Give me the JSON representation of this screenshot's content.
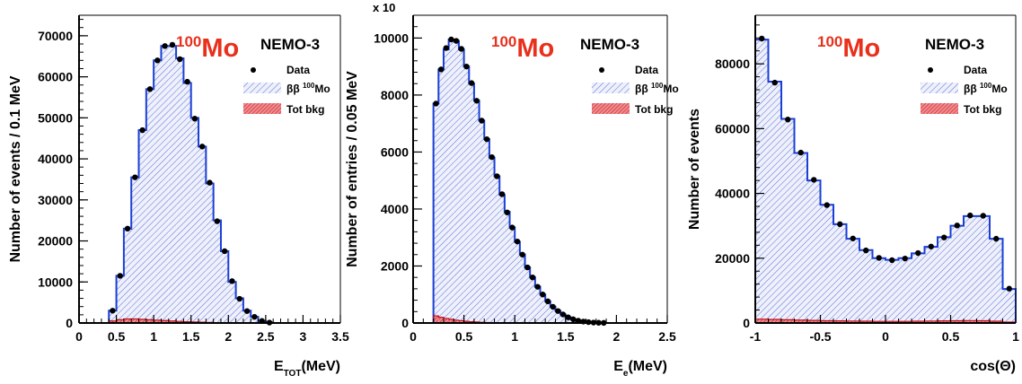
{
  "colors": {
    "signal_line": "#1a3fd6",
    "signal_hatch": "#4a5fd0",
    "bkg_fill": "#e8474c",
    "bkg_hatch": "#c1121a",
    "mo_label": "#e8301c",
    "data_marker": "#000000"
  },
  "chart_data": [
    {
      "type": "histogram",
      "panel": "left",
      "title": "",
      "isotope_label_mass": "100",
      "isotope_label_element": "Mo",
      "experiment_label": "NEMO-3",
      "ylabel": "Number of events / 0.1 MeV",
      "xlabel_main": "E",
      "xlabel_sub": "TOT",
      "xlabel_unit": "(MeV)",
      "y_multiplier": "",
      "xlim": [
        0,
        3.5
      ],
      "ylim": [
        0,
        75000
      ],
      "xticks": [
        0,
        0.5,
        1,
        1.5,
        2,
        2.5,
        3,
        3.5
      ],
      "xtick_labels": [
        "0",
        "0.5",
        "1",
        "1.5",
        "2",
        "2.5",
        "3",
        "3.5"
      ],
      "yticks": [
        0,
        10000,
        20000,
        30000,
        40000,
        50000,
        60000,
        70000
      ],
      "ytick_labels": [
        "0",
        "10000",
        "20000",
        "30000",
        "40000",
        "50000",
        "60000",
        "70000"
      ],
      "bin_edges": [
        0.4,
        0.5,
        0.6,
        0.7,
        0.8,
        0.9,
        1.0,
        1.1,
        1.2,
        1.3,
        1.4,
        1.5,
        1.6,
        1.7,
        1.8,
        1.9,
        2.0,
        2.1,
        2.2,
        2.3,
        2.4,
        2.5,
        2.6
      ],
      "signal": [
        3000,
        11500,
        23000,
        35500,
        47000,
        57000,
        64000,
        67500,
        67500,
        64500,
        58500,
        50000,
        43000,
        34000,
        25000,
        17500,
        10000,
        6000,
        3000,
        1500,
        500,
        100
      ],
      "data": [
        3000,
        11500,
        23000,
        35500,
        47000,
        57000,
        64000,
        67500,
        67800,
        64300,
        58800,
        49800,
        43000,
        34200,
        24800,
        17500,
        10200,
        5900,
        2900,
        1500,
        500,
        100
      ],
      "background": [
        500,
        800,
        1000,
        1000,
        900,
        800,
        700,
        600,
        500,
        400,
        300,
        250,
        200,
        150,
        100,
        60,
        40,
        20,
        10,
        5,
        0,
        0
      ],
      "legend": {
        "data": "Data",
        "signal_prefix": "ββ ",
        "signal_mass": "100",
        "signal_element": "Mo",
        "background": "Tot bkg"
      }
    },
    {
      "type": "histogram",
      "panel": "middle",
      "title": "",
      "isotope_label_mass": "100",
      "isotope_label_element": "Mo",
      "experiment_label": "NEMO-3",
      "ylabel": "Number of entries / 0.05 MeV",
      "xlabel_main": "E",
      "xlabel_sub": "e",
      "xlabel_unit": "(MeV)",
      "y_multiplier": "x 10",
      "xlim": [
        0,
        2.5
      ],
      "ylim": [
        0,
        10800
      ],
      "xticks": [
        0,
        0.5,
        1,
        1.5,
        2,
        2.5
      ],
      "xtick_labels": [
        "0",
        "0.5",
        "1",
        "1.5",
        "2",
        "2.5"
      ],
      "yticks": [
        0,
        2000,
        4000,
        6000,
        8000,
        10000
      ],
      "ytick_labels": [
        "0",
        "2000",
        "4000",
        "6000",
        "8000",
        "10000"
      ],
      "bin_edges": [
        0.2,
        0.25,
        0.3,
        0.35,
        0.4,
        0.45,
        0.5,
        0.55,
        0.6,
        0.65,
        0.7,
        0.75,
        0.8,
        0.85,
        0.9,
        0.95,
        1.0,
        1.05,
        1.1,
        1.15,
        1.2,
        1.25,
        1.3,
        1.35,
        1.4,
        1.45,
        1.5,
        1.55,
        1.6,
        1.65,
        1.7,
        1.75,
        1.8,
        1.85,
        1.9
      ],
      "signal": [
        7700,
        8900,
        9600,
        9950,
        9900,
        9600,
        9000,
        8400,
        7800,
        7100,
        6450,
        5800,
        5150,
        4500,
        3900,
        3350,
        2850,
        2400,
        1950,
        1600,
        1270,
        1000,
        760,
        570,
        420,
        300,
        200,
        130,
        80,
        50,
        30,
        15,
        8,
        4
      ],
      "data": [
        7700,
        8900,
        9650,
        9950,
        9900,
        9620,
        9000,
        8420,
        7800,
        7100,
        6450,
        5820,
        5150,
        4520,
        3880,
        3350,
        2860,
        2400,
        1950,
        1600,
        1270,
        1000,
        760,
        570,
        420,
        300,
        200,
        130,
        80,
        50,
        30,
        15,
        8,
        4
      ],
      "background": [
        250,
        200,
        160,
        130,
        100,
        80,
        60,
        45,
        35,
        25,
        18,
        12,
        8,
        5,
        3,
        2,
        1,
        0,
        0,
        0,
        0,
        0,
        0,
        0,
        0,
        0,
        0,
        0,
        0,
        0,
        0,
        0,
        0,
        0
      ],
      "legend": {
        "data": "Data",
        "signal_prefix": "ββ ",
        "signal_mass": "100",
        "signal_element": "Mo",
        "background": "Tot bkg"
      }
    },
    {
      "type": "histogram",
      "panel": "right",
      "title": "",
      "isotope_label_mass": "100",
      "isotope_label_element": "Mo",
      "experiment_label": "NEMO-3",
      "ylabel": "Number of events",
      "xlabel_main": "cos(Θ)",
      "xlabel_sub": "",
      "xlabel_unit": "",
      "y_multiplier": "",
      "xlim": [
        -1,
        1
      ],
      "ylim": [
        0,
        95000
      ],
      "xticks": [
        -1,
        -0.5,
        0,
        0.5,
        1
      ],
      "xtick_labels": [
        "-1",
        "-0.5",
        "0",
        "0.5",
        "1"
      ],
      "yticks": [
        0,
        20000,
        40000,
        60000,
        80000
      ],
      "ytick_labels": [
        "0",
        "20000",
        "40000",
        "60000",
        "80000"
      ],
      "bin_edges": [
        -1,
        -0.9,
        -0.8,
        -0.7,
        -0.6,
        -0.5,
        -0.4,
        -0.3,
        -0.2,
        -0.1,
        0,
        0.1,
        0.2,
        0.3,
        0.4,
        0.5,
        0.6,
        0.7,
        0.8,
        0.9,
        1.0
      ],
      "signal": [
        87500,
        74500,
        63000,
        52500,
        44000,
        36500,
        30500,
        26000,
        22500,
        20000,
        19500,
        20000,
        21500,
        23500,
        26500,
        30000,
        33000,
        33000,
        26000,
        10500
      ],
      "data": [
        87800,
        74200,
        62800,
        52600,
        44200,
        36400,
        30500,
        26100,
        22400,
        20100,
        19400,
        19900,
        21600,
        23600,
        26400,
        30100,
        33200,
        33100,
        26000,
        10600
      ],
      "background": [
        1200,
        1100,
        1000,
        900,
        800,
        700,
        650,
        600,
        550,
        500,
        500,
        500,
        550,
        600,
        650,
        700,
        750,
        700,
        550,
        300
      ],
      "legend": {
        "data": "Data",
        "signal_prefix": "ββ ",
        "signal_mass": "100",
        "signal_element": "Mo",
        "background": "Tot bkg"
      }
    }
  ]
}
